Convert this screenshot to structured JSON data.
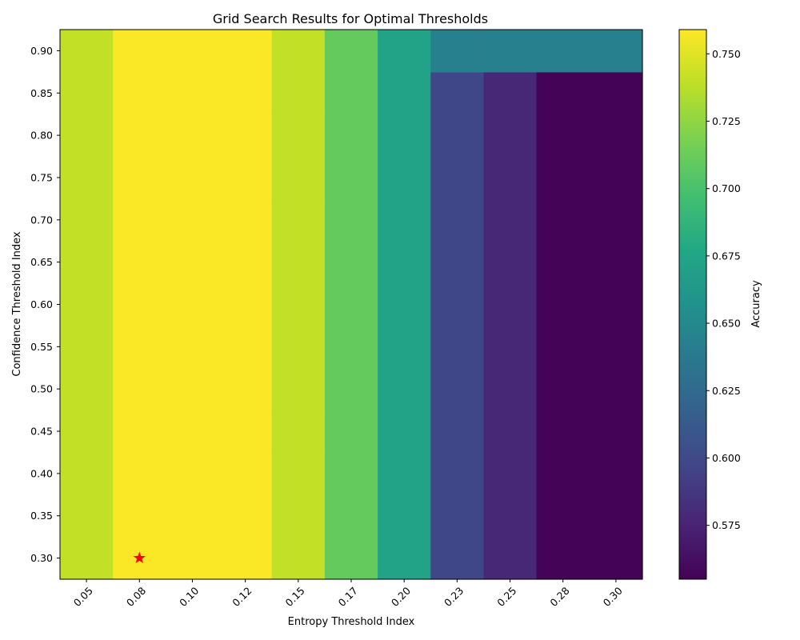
{
  "chart_data": {
    "type": "heatmap",
    "title": "Grid Search Results for Optimal Thresholds",
    "xlabel": "Entropy Threshold Index",
    "ylabel": "Confidence Threshold Index",
    "colorbar_label": "Accuracy",
    "colormap": "viridis",
    "x_ticks": [
      "0.05",
      "0.08",
      "0.10",
      "0.12",
      "0.15",
      "0.17",
      "0.20",
      "0.23",
      "0.25",
      "0.28",
      "0.30"
    ],
    "y_ticks": [
      "0.30",
      "0.35",
      "0.40",
      "0.45",
      "0.50",
      "0.55",
      "0.60",
      "0.65",
      "0.70",
      "0.75",
      "0.80",
      "0.85",
      "0.90"
    ],
    "color_range": [
      0.555,
      0.759
    ],
    "colorbar_ticks": [
      "0.575",
      "0.600",
      "0.625",
      "0.650",
      "0.675",
      "0.700",
      "0.725",
      "0.750"
    ],
    "values": [
      [
        0.74,
        0.758,
        0.758,
        0.758,
        0.74,
        0.71,
        0.672,
        0.598,
        0.578,
        0.556,
        0.556
      ],
      [
        0.74,
        0.758,
        0.758,
        0.758,
        0.74,
        0.71,
        0.672,
        0.598,
        0.578,
        0.556,
        0.556
      ],
      [
        0.74,
        0.758,
        0.758,
        0.758,
        0.74,
        0.71,
        0.672,
        0.598,
        0.578,
        0.556,
        0.556
      ],
      [
        0.74,
        0.758,
        0.758,
        0.758,
        0.74,
        0.71,
        0.672,
        0.598,
        0.578,
        0.556,
        0.556
      ],
      [
        0.74,
        0.758,
        0.758,
        0.758,
        0.74,
        0.71,
        0.672,
        0.598,
        0.578,
        0.556,
        0.556
      ],
      [
        0.74,
        0.758,
        0.758,
        0.758,
        0.74,
        0.71,
        0.672,
        0.598,
        0.578,
        0.556,
        0.556
      ],
      [
        0.74,
        0.758,
        0.758,
        0.758,
        0.74,
        0.71,
        0.672,
        0.598,
        0.578,
        0.556,
        0.556
      ],
      [
        0.74,
        0.758,
        0.758,
        0.758,
        0.74,
        0.71,
        0.672,
        0.598,
        0.578,
        0.556,
        0.556
      ],
      [
        0.74,
        0.758,
        0.758,
        0.758,
        0.74,
        0.71,
        0.672,
        0.598,
        0.578,
        0.556,
        0.556
      ],
      [
        0.74,
        0.758,
        0.758,
        0.758,
        0.74,
        0.71,
        0.672,
        0.598,
        0.578,
        0.556,
        0.556
      ],
      [
        0.74,
        0.758,
        0.758,
        0.758,
        0.74,
        0.71,
        0.672,
        0.598,
        0.578,
        0.556,
        0.556
      ],
      [
        0.74,
        0.758,
        0.758,
        0.758,
        0.74,
        0.71,
        0.672,
        0.598,
        0.578,
        0.556,
        0.556
      ],
      [
        0.74,
        0.758,
        0.758,
        0.758,
        0.74,
        0.71,
        0.672,
        0.643,
        0.643,
        0.643,
        0.643
      ]
    ],
    "best_marker": {
      "x": "0.08",
      "y": "0.30",
      "symbol": "star",
      "color": "#ff0000"
    }
  }
}
